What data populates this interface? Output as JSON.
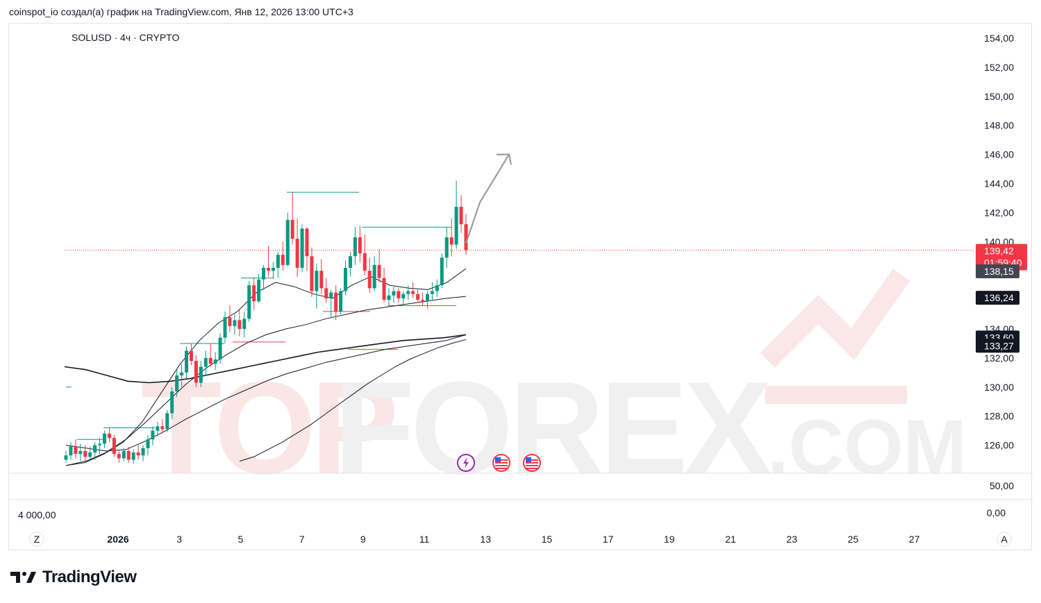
{
  "header": {
    "caption": "coinspot_io создал(а) график на TradingView.com, Янв 12, 2026 13:00 UTC+3"
  },
  "chart": {
    "symbol_label": "SOLUSD · 4ч · CRYPTO",
    "price_axis_ticks": [
      "154,00",
      "152,00",
      "150,00",
      "148,00",
      "146,00",
      "144,00",
      "142,00",
      "140,00",
      "134,00",
      "132,00",
      "130,00",
      "128,00",
      "126,00"
    ],
    "lower_pane": {
      "right_top": "50,00",
      "right_bottom": "0,00",
      "left_value": "4 000,00"
    },
    "time_axis": {
      "left_button": "Z",
      "right_button": "A",
      "labels": [
        "2026",
        "3",
        "5",
        "7",
        "9",
        "11",
        "13",
        "15",
        "17",
        "19",
        "21",
        "23",
        "25",
        "27"
      ]
    },
    "price_tags": [
      {
        "value": "139,42",
        "sub": "01:59:40",
        "color": "#f23645"
      },
      {
        "value": "138,15",
        "color": "#434651"
      },
      {
        "value": "136,24",
        "color": "#131722"
      },
      {
        "value": "133,60",
        "color": "#131722"
      },
      {
        "value": "133,27",
        "color": "#131722"
      }
    ],
    "event_icons": [
      "lightning-icon",
      "us-flag-icon",
      "us-flag-icon"
    ],
    "watermark": {
      "big": "TOPFOREX",
      "small": ".COM"
    },
    "colors": {
      "up": "#089981",
      "down": "#f23645",
      "ma": "#131722",
      "arrow": "#9c9c9c"
    }
  },
  "brand": {
    "name": "TradingView"
  },
  "chart_data": {
    "type": "candlestick",
    "title": "SOLUSD · 4ч · CRYPTO",
    "ylim": [
      124.8,
      155
    ],
    "last_price": 139.42,
    "x": [
      "2025-12-31 00:00",
      "2025-12-31 04:00",
      "2025-12-31 08:00",
      "2025-12-31 12:00",
      "2025-12-31 16:00",
      "2025-12-31 20:00",
      "2026-01-01 00:00",
      "2026-01-01 04:00",
      "2026-01-01 08:00",
      "2026-01-01 12:00",
      "2026-01-01 16:00",
      "2026-01-01 20:00",
      "2026-01-02 00:00",
      "2026-01-02 04:00",
      "2026-01-02 08:00",
      "2026-01-02 12:00",
      "2026-01-02 16:00",
      "2026-01-02 20:00",
      "2026-01-03 00:00",
      "2026-01-03 04:00",
      "2026-01-03 08:00",
      "2026-01-03 12:00",
      "2026-01-03 16:00",
      "2026-01-03 20:00",
      "2026-01-04 00:00",
      "2026-01-04 04:00",
      "2026-01-04 08:00",
      "2026-01-04 12:00",
      "2026-01-04 16:00",
      "2026-01-04 20:00",
      "2026-01-05 00:00",
      "2026-01-05 04:00",
      "2026-01-05 08:00",
      "2026-01-05 12:00",
      "2026-01-05 16:00",
      "2026-01-05 20:00",
      "2026-01-06 00:00",
      "2026-01-06 04:00",
      "2026-01-06 08:00",
      "2026-01-06 12:00",
      "2026-01-06 16:00",
      "2026-01-06 20:00",
      "2026-01-07 00:00",
      "2026-01-07 04:00",
      "2026-01-07 08:00",
      "2026-01-07 12:00",
      "2026-01-07 16:00",
      "2026-01-07 20:00",
      "2026-01-08 00:00",
      "2026-01-08 04:00",
      "2026-01-08 08:00",
      "2026-01-08 12:00",
      "2026-01-08 16:00",
      "2026-01-08 20:00",
      "2026-01-09 00:00",
      "2026-01-09 04:00",
      "2026-01-09 08:00",
      "2026-01-09 12:00",
      "2026-01-09 16:00",
      "2026-01-09 20:00",
      "2026-01-10 00:00",
      "2026-01-10 04:00",
      "2026-01-10 08:00",
      "2026-01-10 12:00",
      "2026-01-10 16:00",
      "2026-01-10 20:00",
      "2026-01-11 00:00",
      "2026-01-11 04:00",
      "2026-01-11 08:00",
      "2026-01-11 12:00",
      "2026-01-11 16:00",
      "2026-01-11 20:00",
      "2026-01-12 00:00",
      "2026-01-12 04:00",
      "2026-01-12 08:00",
      "2026-01-12 12:00"
    ],
    "ohlc": [
      [
        125.0,
        125.6,
        124.8,
        125.3
      ],
      [
        125.3,
        126.2,
        125.0,
        125.9
      ],
      [
        125.9,
        126.4,
        125.1,
        125.4
      ],
      [
        125.4,
        126.1,
        124.9,
        125.6
      ],
      [
        125.6,
        126.0,
        124.9,
        125.2
      ],
      [
        125.2,
        125.9,
        124.9,
        125.5
      ],
      [
        125.5,
        126.2,
        125.0,
        126.0
      ],
      [
        126.0,
        126.5,
        125.4,
        126.1
      ],
      [
        126.1,
        127.0,
        125.8,
        126.8
      ],
      [
        126.8,
        127.2,
        126.2,
        126.5
      ],
      [
        126.5,
        126.7,
        125.2,
        125.4
      ],
      [
        125.4,
        125.7,
        124.8,
        125.1
      ],
      [
        125.1,
        125.8,
        124.9,
        125.6
      ],
      [
        125.6,
        125.9,
        124.8,
        125.0
      ],
      [
        125.0,
        125.7,
        124.7,
        125.5
      ],
      [
        125.5,
        126.0,
        125.0,
        125.3
      ],
      [
        125.3,
        126.0,
        124.9,
        125.8
      ],
      [
        125.8,
        126.7,
        125.3,
        126.4
      ],
      [
        126.4,
        127.3,
        126.0,
        127.0
      ],
      [
        127.0,
        127.6,
        126.6,
        127.3
      ],
      [
        127.3,
        127.8,
        126.8,
        127.1
      ],
      [
        127.1,
        128.4,
        126.9,
        128.2
      ],
      [
        128.2,
        130.0,
        127.8,
        129.7
      ],
      [
        129.7,
        131.2,
        129.3,
        130.8
      ],
      [
        130.8,
        131.6,
        130.0,
        131.0
      ],
      [
        131.0,
        132.8,
        130.6,
        132.5
      ],
      [
        132.5,
        133.0,
        131.5,
        131.8
      ],
      [
        131.8,
        132.2,
        130.0,
        130.3
      ],
      [
        130.3,
        131.8,
        130.0,
        131.4
      ],
      [
        131.4,
        132.5,
        130.8,
        132.0
      ],
      [
        132.0,
        133.0,
        131.4,
        131.6
      ],
      [
        131.6,
        132.4,
        131.2,
        131.9
      ],
      [
        131.9,
        133.7,
        131.6,
        133.4
      ],
      [
        133.4,
        135.2,
        133.0,
        134.8
      ],
      [
        134.8,
        135.6,
        133.8,
        134.2
      ],
      [
        134.2,
        135.0,
        133.6,
        134.6
      ],
      [
        134.6,
        135.3,
        133.5,
        134.0
      ],
      [
        134.0,
        135.2,
        133.4,
        134.7
      ],
      [
        134.7,
        137.3,
        134.5,
        137.0
      ],
      [
        137.0,
        137.5,
        135.3,
        135.9
      ],
      [
        135.9,
        137.8,
        135.8,
        137.4
      ],
      [
        137.4,
        138.4,
        136.7,
        138.2
      ],
      [
        138.2,
        139.7,
        137.6,
        138.0
      ],
      [
        138.0,
        138.6,
        137.5,
        138.2
      ],
      [
        138.2,
        139.3,
        137.5,
        139.1
      ],
      [
        139.1,
        140.0,
        138.0,
        138.4
      ],
      [
        138.4,
        142.0,
        138.3,
        141.5
      ],
      [
        141.5,
        143.4,
        139.8,
        140.2
      ],
      [
        140.2,
        141.6,
        137.6,
        138.2
      ],
      [
        138.2,
        141.2,
        137.9,
        140.9
      ],
      [
        140.9,
        141.0,
        138.0,
        139.0
      ],
      [
        139.0,
        139.6,
        136.2,
        136.6
      ],
      [
        136.6,
        138.5,
        135.4,
        138.0
      ],
      [
        138.0,
        138.8,
        136.4,
        136.8
      ],
      [
        136.8,
        137.5,
        135.8,
        136.1
      ],
      [
        136.1,
        136.7,
        134.8,
        136.5
      ],
      [
        136.5,
        137.0,
        134.6,
        135.2
      ],
      [
        135.2,
        136.8,
        135.0,
        136.6
      ],
      [
        136.6,
        138.7,
        136.3,
        138.2
      ],
      [
        138.2,
        139.3,
        137.6,
        139.0
      ],
      [
        139.0,
        141.0,
        138.4,
        140.3
      ],
      [
        140.3,
        141.1,
        138.6,
        139.2
      ],
      [
        139.2,
        140.5,
        137.7,
        138.0
      ],
      [
        138.0,
        138.9,
        136.5,
        136.8
      ],
      [
        136.8,
        139.0,
        136.6,
        138.4
      ],
      [
        138.4,
        139.5,
        137.2,
        137.5
      ],
      [
        137.5,
        138.2,
        135.8,
        136.0
      ],
      [
        136.0,
        136.8,
        135.5,
        136.3
      ],
      [
        136.3,
        136.9,
        135.8,
        136.6
      ],
      [
        136.6,
        136.8,
        135.8,
        136.1
      ],
      [
        136.1,
        136.6,
        135.6,
        136.4
      ],
      [
        136.4,
        137.0,
        136.0,
        136.6
      ],
      [
        136.6,
        137.2,
        136.1,
        136.4
      ],
      [
        136.4,
        136.7,
        135.8,
        136.0
      ],
      [
        136.0,
        136.5,
        135.6,
        135.9
      ],
      [
        135.9,
        136.6,
        135.4,
        136.4
      ]
    ],
    "ohlc_tail": [
      [
        136.4,
        137.2,
        136.0,
        136.6
      ],
      [
        136.6,
        137.4,
        136.2,
        137.0
      ],
      [
        137.0,
        139.2,
        136.8,
        138.9
      ],
      [
        138.9,
        141.0,
        138.2,
        140.3
      ],
      [
        140.3,
        141.6,
        139.0,
        139.8
      ],
      [
        139.8,
        144.2,
        139.5,
        142.4
      ],
      [
        142.4,
        143.2,
        140.6,
        141.2
      ],
      [
        141.2,
        141.9,
        139.1,
        139.42
      ]
    ],
    "moving_averages": [
      {
        "values": [
          124.6,
          124.8,
          125.4,
          126.2,
          127.6,
          129.6,
          131.6,
          133.2,
          134.4,
          135.2,
          136.5,
          137.2,
          136.9,
          136.4,
          136.1,
          137.0,
          137.6,
          137.0,
          136.8,
          136.7,
          137.2,
          138.15
        ]
      },
      {
        "values": [
          124.6,
          124.9,
          125.5,
          126.4,
          127.6,
          128.9,
          130.2,
          131.3,
          132.2,
          133.0,
          133.6,
          134.0,
          134.3,
          134.7,
          135.0,
          135.3,
          135.5,
          135.7,
          135.9,
          136.1,
          136.24
        ]
      },
      {
        "values": [
          124.9,
          125.2,
          125.7,
          126.2,
          126.8,
          127.4,
          128.1,
          128.8,
          129.5,
          130.2,
          130.8,
          131.4,
          131.9,
          132.3,
          132.7,
          133.0,
          133.27
        ]
      },
      {
        "values": [
          126.0,
          125.8,
          125.6,
          125.7,
          126.3,
          127.0,
          127.8,
          128.5,
          129.2,
          129.8,
          130.4,
          130.9,
          131.3,
          131.7,
          132.0,
          132.3,
          132.6,
          132.8,
          133.0,
          133.2,
          133.6
        ]
      },
      {
        "values": [
          131.4,
          131.2,
          130.8,
          130.4,
          130.3,
          130.4,
          130.6,
          130.9,
          131.2,
          131.5,
          131.8,
          132.1,
          132.4,
          132.6,
          132.8,
          133.0,
          133.2,
          133.3,
          133.4,
          133.6
        ]
      }
    ]
  }
}
